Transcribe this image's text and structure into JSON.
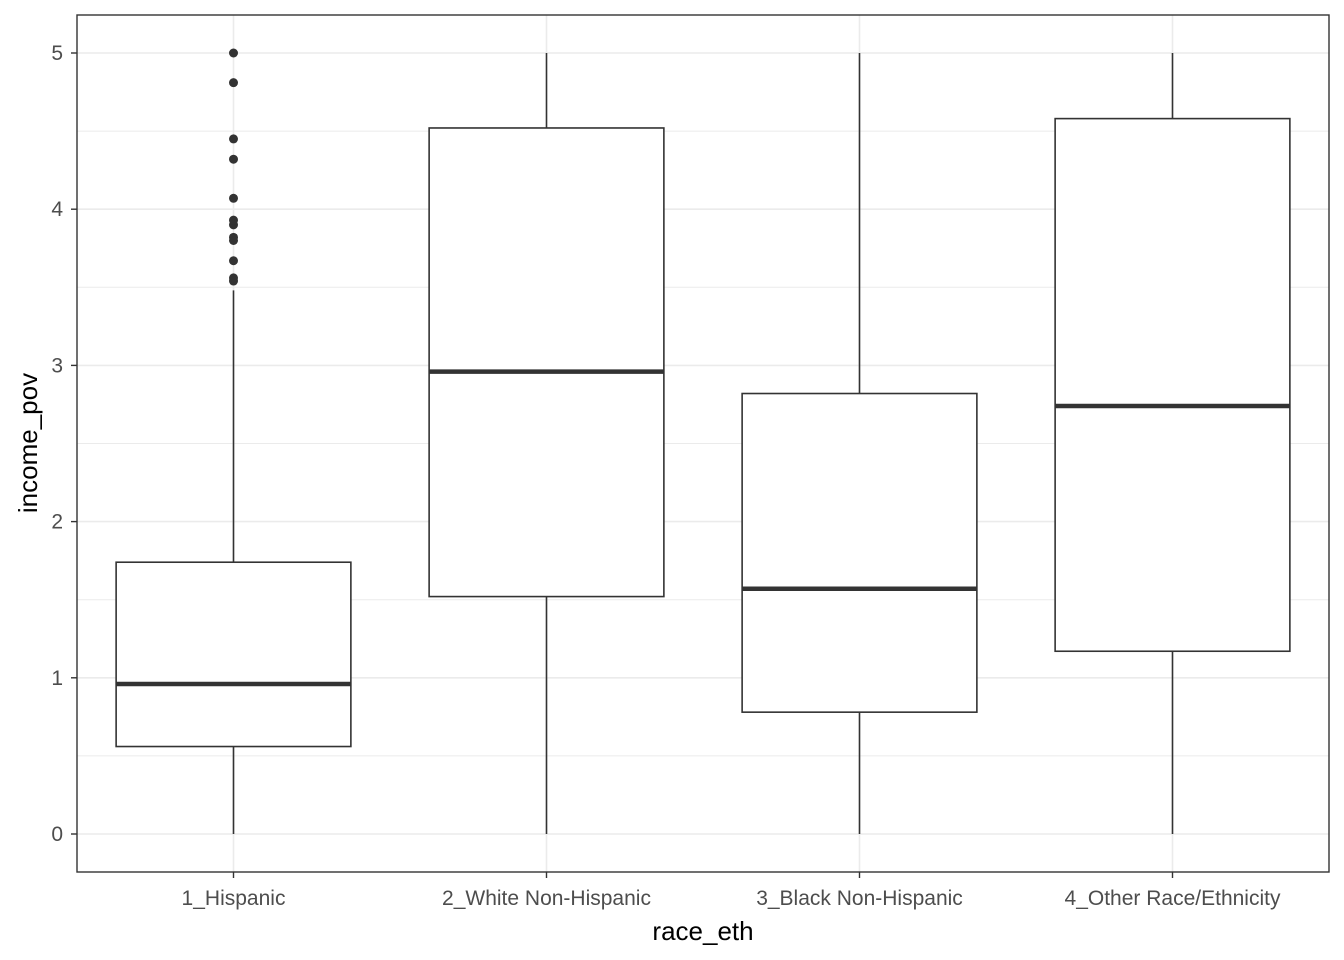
{
  "chart_data": {
    "type": "boxplot",
    "xlabel": "race_eth",
    "ylabel": "income_pov",
    "ylim": [
      -0.24,
      5.24
    ],
    "yticks": [
      "0",
      "1",
      "2",
      "3",
      "4",
      "5"
    ],
    "grid": true,
    "theme": "bw",
    "colors": {
      "box_line": "#333333",
      "outlier": "#333333",
      "grid": "#ebebeb",
      "panel_border": "#333333"
    },
    "categories": [
      "1_Hispanic",
      "2_White Non-Hispanic",
      "3_Black Non-Hispanic",
      "4_Other Race/Ethnicity"
    ],
    "boxes": [
      {
        "category": "1_Hispanic",
        "whisker_low": 0.0,
        "q1": 0.56,
        "median": 0.96,
        "q3": 1.74,
        "whisker_high": 3.48,
        "outliers": [
          3.54,
          3.56,
          3.67,
          3.8,
          3.82,
          3.9,
          3.93,
          4.07,
          4.32,
          4.45,
          4.81,
          5.0
        ]
      },
      {
        "category": "2_White Non-Hispanic",
        "whisker_low": 0.0,
        "q1": 1.52,
        "median": 2.96,
        "q3": 4.52,
        "whisker_high": 5.0,
        "outliers": []
      },
      {
        "category": "3_Black Non-Hispanic",
        "whisker_low": 0.0,
        "q1": 0.78,
        "median": 1.57,
        "q3": 2.82,
        "whisker_high": 5.0,
        "outliers": []
      },
      {
        "category": "4_Other Race/Ethnicity",
        "whisker_low": 0.0,
        "q1": 1.17,
        "median": 2.74,
        "q3": 4.58,
        "whisker_high": 5.0,
        "outliers": []
      }
    ]
  }
}
